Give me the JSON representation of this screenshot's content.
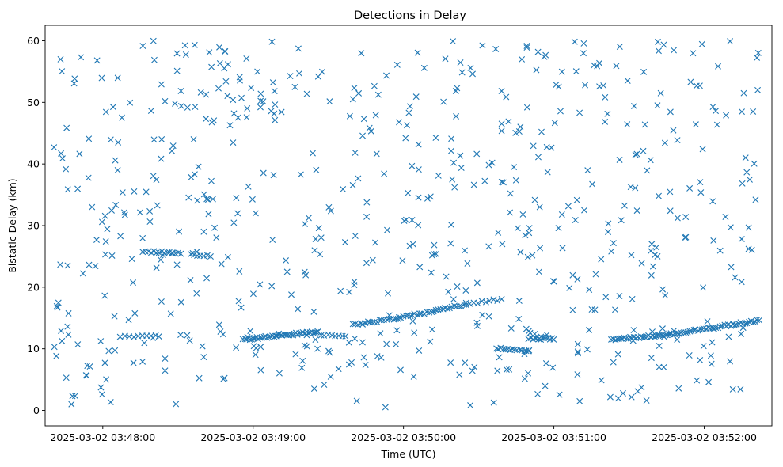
{
  "chart_data": {
    "type": "scatter",
    "title": "Detections in Delay",
    "xlabel": "Time (UTC)",
    "ylabel": "Bistatic Delay (km)",
    "x_unit": "seconds",
    "x_tick_labels": [
      "2025-03-02 03:48:00",
      "2025-03-02 03:49:00",
      "2025-03-02 03:50:00",
      "2025-03-02 03:51:00",
      "2025-03-02 03:52:00"
    ],
    "x_tick_values": [
      "03:48:00",
      "03:49:00",
      "03:50:00",
      "03:51:00",
      "03:52:00"
    ],
    "xlim": [
      "03:47:37",
      "03:52:27"
    ],
    "ylim": [
      -2.5,
      62.5
    ],
    "y_ticks": [
      0,
      10,
      20,
      30,
      40,
      50,
      60
    ],
    "grid": false,
    "legend": "none",
    "marker": "x",
    "color": "#1f77b4",
    "tracks": [
      {
        "x_start": "03:48:07",
        "x_end": "03:48:21",
        "y_start": 12.0,
        "y_end": 12.1,
        "count": 9
      },
      {
        "x_start": "03:48:16",
        "x_end": "03:48:31",
        "y_start": 25.8,
        "y_end": 25.6,
        "count": 15
      },
      {
        "x_start": "03:48:35",
        "x_end": "03:48:43",
        "y_start": 25.3,
        "y_end": 25.0,
        "count": 7
      },
      {
        "x_start": "03:48:56",
        "x_end": "03:49:26",
        "y_start": 11.5,
        "y_end": 12.8,
        "count": 45
      },
      {
        "x_start": "03:49:27",
        "x_end": "03:49:37",
        "y_start": 12.2,
        "y_end": 12.0,
        "count": 8
      },
      {
        "x_start": "03:49:40",
        "x_end": "03:49:58",
        "y_start": 13.9,
        "y_end": 15.0,
        "count": 20
      },
      {
        "x_start": "03:49:58",
        "x_end": "03:50:25",
        "y_start": 15.0,
        "y_end": 17.2,
        "count": 30
      },
      {
        "x_start": "03:50:25",
        "x_end": "03:50:39",
        "y_start": 17.3,
        "y_end": 18.0,
        "count": 10
      },
      {
        "x_start": "03:50:37",
        "x_end": "03:50:50",
        "y_start": 10.0,
        "y_end": 9.8,
        "count": 15
      },
      {
        "x_start": "03:50:50",
        "x_end": "03:51:00",
        "y_start": 11.7,
        "y_end": 11.6,
        "count": 14
      },
      {
        "x_start": "03:51:23",
        "x_end": "03:51:46",
        "y_start": 11.5,
        "y_end": 12.3,
        "count": 32
      },
      {
        "x_start": "03:51:46",
        "x_end": "03:52:22",
        "y_start": 12.3,
        "y_end": 14.6,
        "count": 45
      }
    ],
    "scatter": {
      "x_range": [
        "03:47:40",
        "03:52:22"
      ],
      "y_range": [
        0.5,
        60.0
      ],
      "count": 640,
      "distribution": "approximately uniform"
    }
  }
}
